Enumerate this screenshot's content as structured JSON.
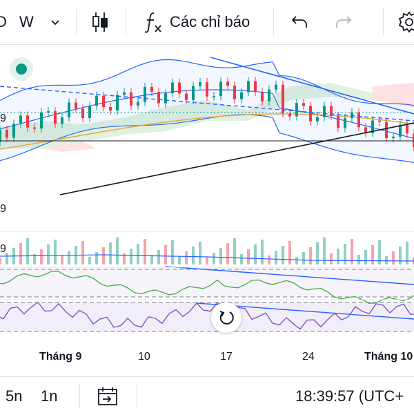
{
  "toolbar": {
    "interval_partial": "D",
    "interval_w": "W",
    "chevron_icon": "chevron-down-icon",
    "chart_type_icon": "candlestick-icon",
    "indicators_icon": "fx-icon",
    "indicators_label": "Các chỉ báo",
    "undo_icon": "undo-icon",
    "redo_icon": "redo-icon",
    "settings_icon": "gear-icon"
  },
  "chart": {
    "price_scale_label_1": "9",
    "price_scale_label_2": "9",
    "price_scale_label_3": "9",
    "colors": {
      "up": "#089981",
      "down": "#f23645",
      "bb": "#2962ff",
      "ma": "#e8a33d",
      "rsi": "#7e57c2",
      "osc": "#4caf50"
    }
  },
  "time_axis": {
    "labels": [
      {
        "text": "Tháng 9",
        "bold": true
      },
      {
        "text": "10",
        "bold": false
      },
      {
        "text": "17",
        "bold": false
      },
      {
        "text": "24",
        "bold": false
      },
      {
        "text": "Tháng 10",
        "bold": true
      }
    ]
  },
  "bottom_bar": {
    "range_5n": "5n",
    "range_1n": "1n",
    "goto_icon": "calendar-goto-icon",
    "clock": "18:39:57 (UTC+"
  },
  "reset_icon": "reset-icon"
}
